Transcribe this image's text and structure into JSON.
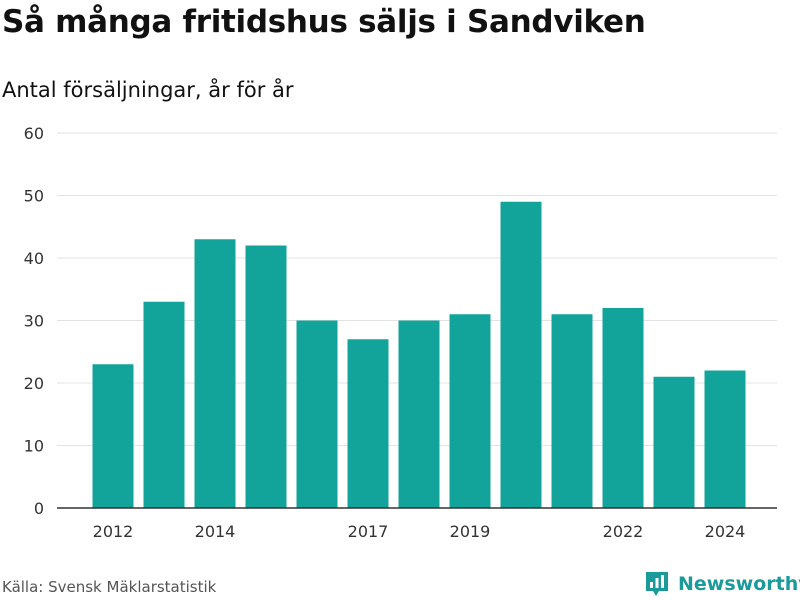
{
  "header": {
    "title": "Så många fritidshus säljs i Sandviken",
    "subtitle": "Antal försäljningar, år för år"
  },
  "footer": {
    "source": "Källa: Svensk Mäklarstatistik",
    "brand": "Newsworthy"
  },
  "colors": {
    "bar": "#12a39b",
    "grid": "#e3e3e3",
    "axis": "#333333",
    "brand": "#1a9a9a"
  },
  "icons": {
    "brand_logo": "bar-chart-logo-icon"
  },
  "chart_data": {
    "type": "bar",
    "title": "Så många fritidshus säljs i Sandviken",
    "subtitle": "Antal försäljningar, år för år",
    "categories": [
      "2012",
      "2013",
      "2014",
      "2015",
      "2016",
      "2017",
      "2018",
      "2019",
      "2020",
      "2021",
      "2022",
      "2023",
      "2024"
    ],
    "values": [
      23,
      33,
      43,
      42,
      30,
      27,
      30,
      31,
      49,
      31,
      32,
      21,
      22
    ],
    "x_tick_labels": [
      "2012",
      "2014",
      "2017",
      "2019",
      "2022",
      "2024"
    ],
    "y_ticks": [
      0,
      10,
      20,
      30,
      40,
      50,
      60
    ],
    "ylim": [
      0,
      60
    ],
    "xlabel": "",
    "ylabel": "",
    "grid": true,
    "legend": "none"
  }
}
